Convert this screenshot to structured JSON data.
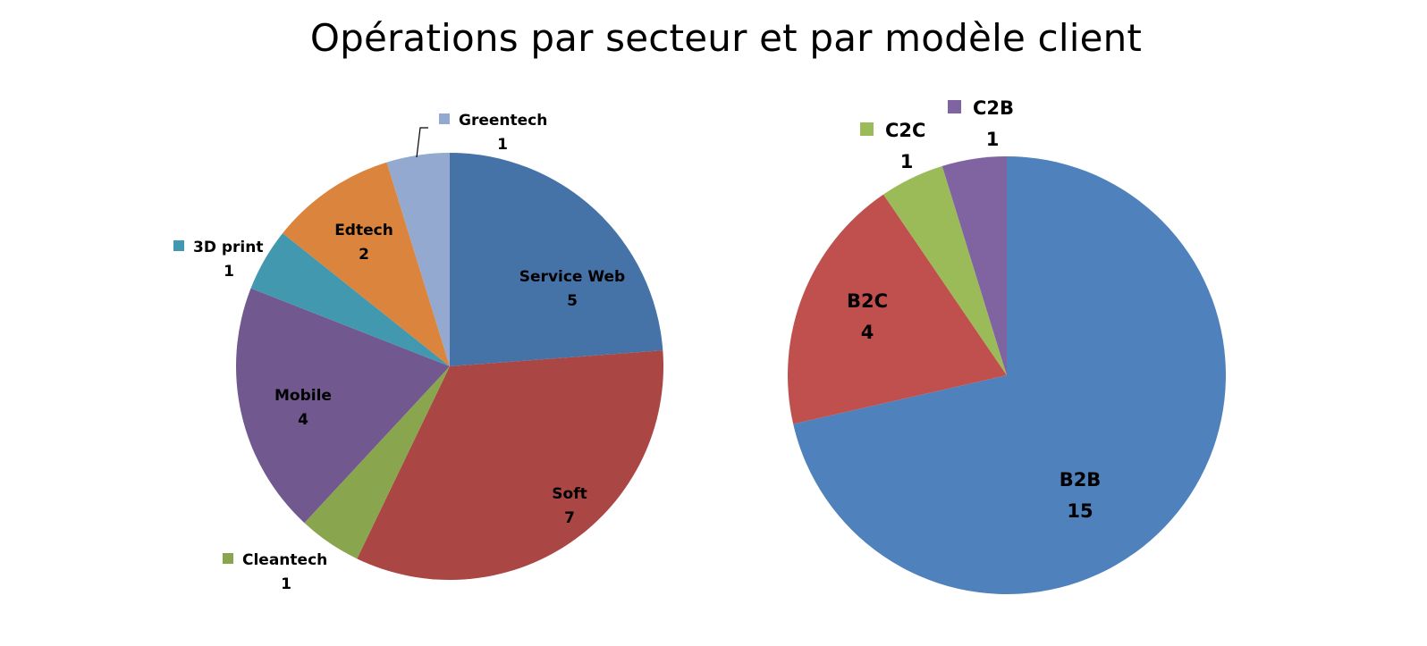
{
  "title": "Opérations par secteur et par modèle client",
  "chart_data": [
    {
      "type": "pie",
      "categories": [
        "Service Web",
        "Soft",
        "Cleantech",
        "Mobile",
        "3D print",
        "Edtech",
        "Greentech"
      ],
      "values": [
        5,
        7,
        1,
        4,
        1,
        2,
        1
      ],
      "colors": [
        "#4572A7",
        "#AA4643",
        "#89A54E",
        "#71588F",
        "#4198AF",
        "#DB843D",
        "#93A9CF"
      ],
      "data_labels": [
        {
          "name": "Service Web",
          "value": "5"
        },
        {
          "name": "Soft",
          "value": "7"
        },
        {
          "name": "Cleantech",
          "value": "1"
        },
        {
          "name": "Mobile",
          "value": "4"
        },
        {
          "name": "3D print",
          "value": "1"
        },
        {
          "name": "Edtech",
          "value": "2"
        },
        {
          "name": "Greentech",
          "value": "1"
        }
      ]
    },
    {
      "type": "pie",
      "categories": [
        "B2B",
        "B2C",
        "C2C",
        "C2B"
      ],
      "values": [
        15,
        4,
        1,
        1
      ],
      "colors": [
        "#4F81BD",
        "#C0504D",
        "#9BBB59",
        "#8064A2"
      ],
      "data_labels": [
        {
          "name": "B2B",
          "value": "15"
        },
        {
          "name": "B2C",
          "value": "4"
        },
        {
          "name": "C2C",
          "value": "1"
        },
        {
          "name": "C2B",
          "value": "1"
        }
      ]
    }
  ]
}
